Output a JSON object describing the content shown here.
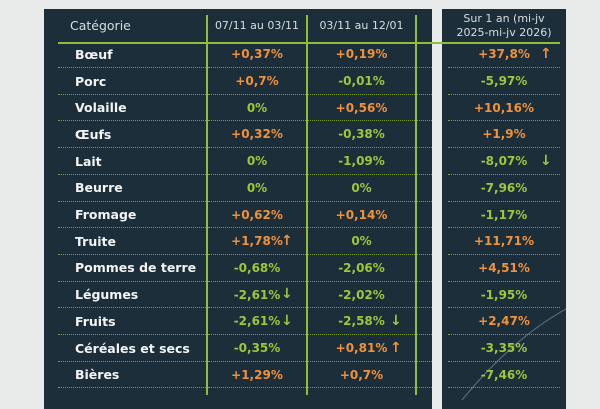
{
  "colors": {
    "background": "#1c2e3a",
    "increase": "#f0923a",
    "decrease": "#9cc83c",
    "rule": "#8fbf3a"
  },
  "headers": {
    "category": "Catégorie",
    "period1": "07/11 au 03/11",
    "period2": "03/11 au 12/01",
    "year_line1": "Sur 1 an (mi-jv",
    "year_line2": "2025-mi-jv 2026)"
  },
  "rows": [
    {
      "category": "Bœuf",
      "p1": "+0,37%",
      "p2": "+0,19%",
      "year": "+37,8%",
      "year_arrow": "up"
    },
    {
      "category": "Porc",
      "p1": "+0,7%",
      "p2": "-0,01%",
      "year": "-5,97%"
    },
    {
      "category": "Volaille",
      "p1": "0%",
      "p2": "+0,56%",
      "year": "+10,16%"
    },
    {
      "category": "Œufs",
      "p1": "+0,32%",
      "p2": "-0,38%",
      "year": "+1,9%"
    },
    {
      "category": "Lait",
      "p1": "0%",
      "p2": "-1,09%",
      "year": "-8,07%",
      "year_arrow": "down"
    },
    {
      "category": "Beurre",
      "p1": "0%",
      "p2": "0%",
      "year": "-7,96%"
    },
    {
      "category": "Fromage",
      "p1": "+0,62%",
      "p2": "+0,14%",
      "year": "-1,17%"
    },
    {
      "category": "Truite",
      "p1": "+1,78%",
      "p1_arrow": "up",
      "p2": "0%",
      "year": "+11,71%"
    },
    {
      "category": "Pommes de terre",
      "p1": "-0,68%",
      "p2": "-2,06%",
      "year": "+4,51%"
    },
    {
      "category": "Légumes",
      "p1": "-2,61%",
      "p1_arrow": "down",
      "p2": "-2,02%",
      "year": "-1,95%"
    },
    {
      "category": "Fruits",
      "p1": "-2,61%",
      "p1_arrow": "down",
      "p2": "-2,58%",
      "p2_arrow": "down",
      "year": "+2,47%"
    },
    {
      "category": "Céréales et secs",
      "p1": "-0,35%",
      "p2": "+0,81%",
      "p2_arrow": "up",
      "year": "-3,35%"
    },
    {
      "category": "Bières",
      "p1": "+1,29%",
      "p2": "+0,7%",
      "year": "-7,46%"
    }
  ]
}
